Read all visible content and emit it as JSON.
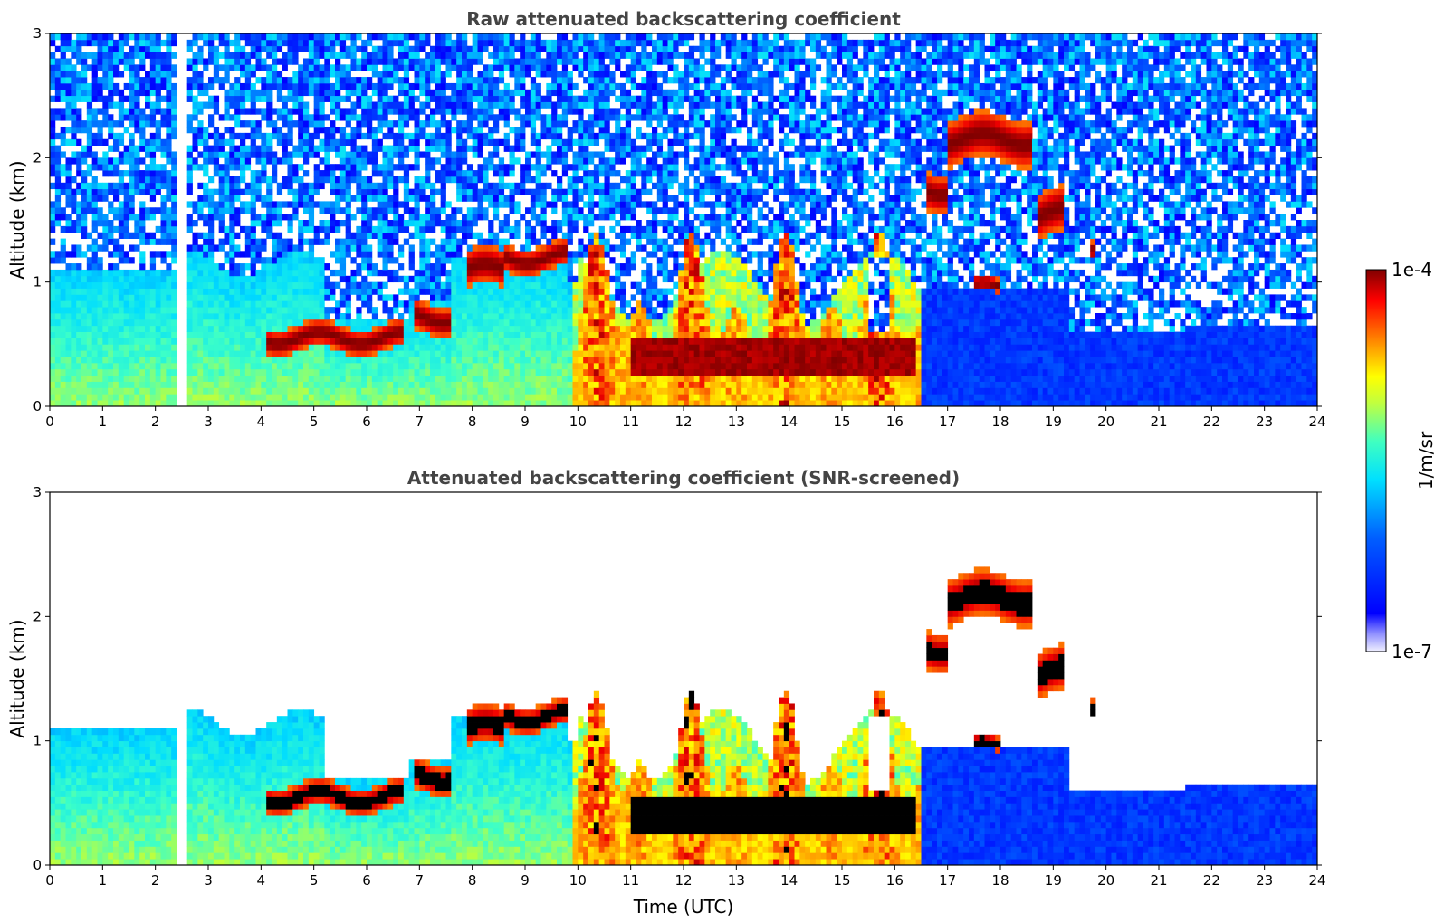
{
  "chart_data": [
    {
      "type": "heatmap",
      "title": "Raw attenuated backscattering coefficient",
      "xlabel": "",
      "ylabel": "Altitude (km)",
      "xlim": [
        0,
        24
      ],
      "ylim": [
        0,
        3
      ],
      "x_ticks": [
        "0",
        "1",
        "2",
        "3",
        "4",
        "5",
        "6",
        "7",
        "8",
        "9",
        "10",
        "11",
        "12",
        "13",
        "14",
        "15",
        "16",
        "17",
        "18",
        "19",
        "20",
        "21",
        "22",
        "23",
        "24"
      ],
      "y_ticks": [
        "0",
        "1",
        "2",
        "3"
      ],
      "gap": {
        "start": 2.45,
        "end": 2.6
      },
      "features": [
        {
          "name": "boundary layer aerosol",
          "x_range": [
            0,
            10
          ],
          "top_km": 1.1
        },
        {
          "name": "cloud layer",
          "x_range": [
            4.1,
            6.7
          ],
          "altitude_km": 0.55
        },
        {
          "name": "cloud layer",
          "x_range": [
            6.9,
            7.6
          ],
          "altitude_km": 0.7
        },
        {
          "name": "cloud layer",
          "x_range": [
            7.9,
            9.8
          ],
          "altitude_km": 1.1
        },
        {
          "name": "dense cloud / precipitation",
          "x_range": [
            9.8,
            16.5
          ],
          "altitude_km": 0.4
        },
        {
          "name": "elevated cloud",
          "x_range": [
            16.6,
            18.6
          ],
          "altitude_km": 2.1
        },
        {
          "name": "elevated cloud",
          "x_range": [
            18.7,
            19.3
          ],
          "altitude_km": 1.5
        },
        {
          "name": "weak residual layer",
          "x_range": [
            16.6,
            24
          ],
          "top_km": 0.6
        }
      ]
    },
    {
      "type": "heatmap",
      "title": "Attenuated backscattering coefficient (SNR-screened)",
      "xlabel": "Time (UTC)",
      "ylabel": "Altitude (km)",
      "xlim": [
        0,
        24
      ],
      "ylim": [
        0,
        3
      ],
      "x_ticks": [
        "0",
        "1",
        "2",
        "3",
        "4",
        "5",
        "6",
        "7",
        "8",
        "9",
        "10",
        "11",
        "12",
        "13",
        "14",
        "15",
        "16",
        "17",
        "18",
        "19",
        "20",
        "21",
        "22",
        "23",
        "24"
      ],
      "y_ticks": [
        "0",
        "1",
        "2",
        "3"
      ],
      "gap": {
        "start": 2.45,
        "end": 2.6
      }
    }
  ],
  "colorbar": {
    "label": "1/m/sr",
    "max_label": "1e-4",
    "min_label": "1e-7",
    "scale": "log",
    "range": [
      1e-07,
      0.0001
    ],
    "colormap": "jet"
  }
}
